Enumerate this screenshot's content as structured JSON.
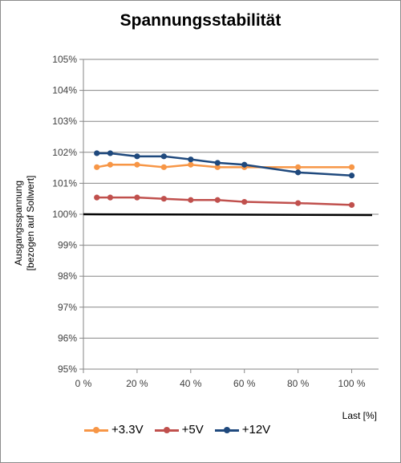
{
  "chart_data": {
    "type": "line",
    "title": "Spannungsstabilität",
    "ylabel_line1": "Ausgangsspannung",
    "ylabel_line2": "[bezogen auf Sollwert]",
    "xlabel": "Last [%]",
    "xlim": [
      0,
      110
    ],
    "ylim": [
      95,
      105
    ],
    "x_ticks": [
      0,
      20,
      40,
      60,
      80,
      100
    ],
    "x_tick_labels": [
      "0 %",
      "20 %",
      "40 %",
      "60 %",
      "80 %",
      "100 %"
    ],
    "y_ticks": [
      95,
      96,
      97,
      98,
      99,
      100,
      101,
      102,
      103,
      104,
      105
    ],
    "y_tick_labels": [
      "95%",
      "96%",
      "97%",
      "98%",
      "99%",
      "100%",
      "101%",
      "102%",
      "103%",
      "104%",
      "105%"
    ],
    "grid": "horizontal",
    "legend_position": "bottom",
    "reference_line": 100,
    "series": [
      {
        "name": "+3.3V",
        "color": "#f79646",
        "x": [
          5,
          10,
          20,
          30,
          40,
          50,
          60,
          80,
          100
        ],
        "y": [
          101.52,
          101.6,
          101.6,
          101.52,
          101.6,
          101.52,
          101.52,
          101.52,
          101.52
        ]
      },
      {
        "name": "+5V",
        "color": "#c0504d",
        "x": [
          5,
          10,
          20,
          30,
          40,
          50,
          60,
          80,
          100
        ],
        "y": [
          100.54,
          100.54,
          100.54,
          100.5,
          100.46,
          100.46,
          100.4,
          100.36,
          100.3
        ]
      },
      {
        "name": "+12V",
        "color": "#1f497d",
        "x": [
          5,
          10,
          20,
          30,
          40,
          50,
          60,
          80,
          100
        ],
        "y": [
          101.97,
          101.97,
          101.87,
          101.87,
          101.77,
          101.66,
          101.6,
          101.35,
          101.25
        ]
      }
    ]
  }
}
